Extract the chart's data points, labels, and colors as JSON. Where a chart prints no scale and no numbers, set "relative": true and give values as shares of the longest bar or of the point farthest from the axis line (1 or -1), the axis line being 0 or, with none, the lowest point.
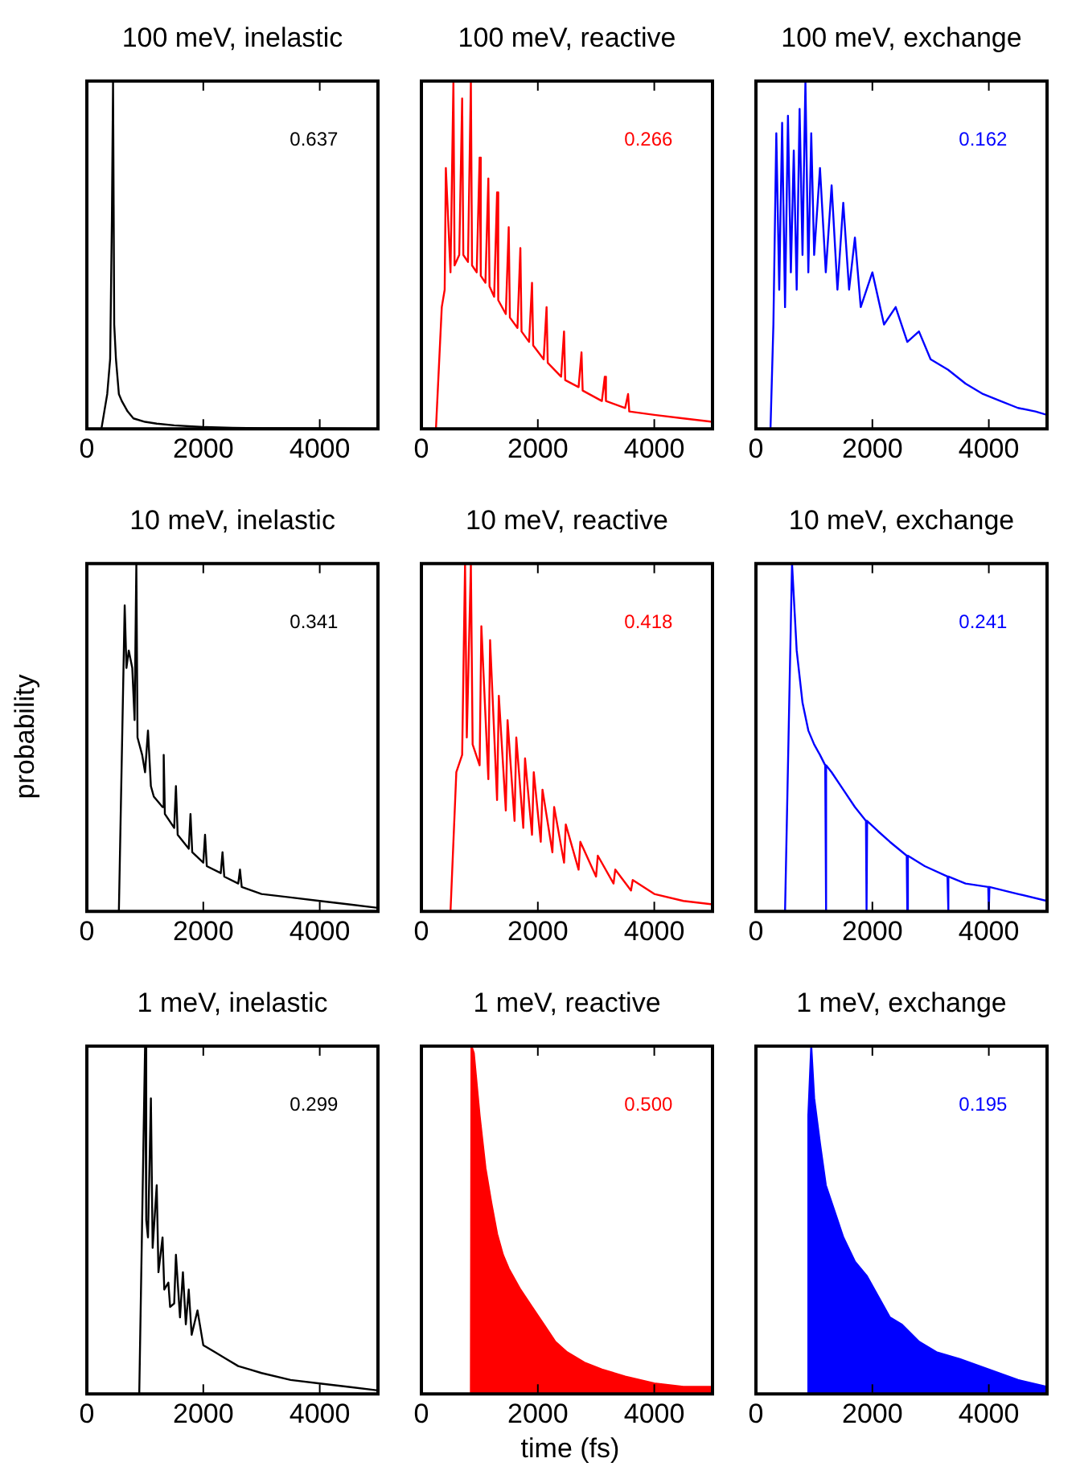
{
  "chart_data": [
    {
      "type": "line",
      "title": "100 meV, inelastic",
      "relative": true,
      "tick_labels": "x",
      "xlim": [
        0,
        5000
      ],
      "xticks": [
        0,
        2000,
        4000
      ],
      "annotations": [
        "0.637"
      ],
      "series": [
        {
          "color": "#000000",
          "x": [
            250,
            300,
            350,
            400,
            430,
            450,
            470,
            500,
            550,
            600,
            700,
            800,
            1000,
            1200,
            1500,
            2000,
            2500,
            3000,
            4000,
            5000
          ],
          "values": [
            0,
            0.05,
            0.1,
            0.2,
            0.6,
            1,
            0.3,
            0.2,
            0.1,
            0.08,
            0.05,
            0.03,
            0.02,
            0.015,
            0.01,
            0.005,
            0.003,
            0.002,
            0.001,
            0
          ]
        }
      ]
    },
    {
      "type": "line",
      "title": "100 meV, reactive",
      "relative": true,
      "tick_labels": "x",
      "xlim": [
        0,
        5000
      ],
      "xticks": [
        0,
        2000,
        4000
      ],
      "annotations": [
        "0.266"
      ],
      "series": [
        {
          "color": "#ff0000",
          "x": [
            250,
            350,
            400,
            420,
            500,
            550,
            570,
            650,
            700,
            720,
            800,
            850,
            870,
            950,
            1000,
            1020,
            1100,
            1150,
            1170,
            1250,
            1300,
            1320,
            1450,
            1500,
            1520,
            1650,
            1700,
            1720,
            1850,
            1900,
            1920,
            2100,
            2150,
            2170,
            2400,
            2450,
            2470,
            2700,
            2750,
            2770,
            3100,
            3150,
            3170,
            3500,
            3550,
            3570,
            4000,
            4500,
            5000
          ],
          "values": [
            0,
            0.35,
            0.4,
            0.75,
            0.45,
            1,
            0.47,
            0.5,
            0.95,
            0.5,
            0.48,
            1,
            0.47,
            0.45,
            0.78,
            0.44,
            0.42,
            0.72,
            0.41,
            0.38,
            0.68,
            0.37,
            0.33,
            0.58,
            0.32,
            0.29,
            0.52,
            0.28,
            0.25,
            0.42,
            0.24,
            0.2,
            0.35,
            0.19,
            0.15,
            0.28,
            0.14,
            0.12,
            0.22,
            0.11,
            0.08,
            0.15,
            0.08,
            0.06,
            0.1,
            0.05,
            0.04,
            0.03,
            0.02
          ]
        }
      ]
    },
    {
      "type": "line",
      "title": "100 meV, exchange",
      "relative": true,
      "tick_labels": "x",
      "xlim": [
        0,
        5000
      ],
      "xticks": [
        0,
        2000,
        4000
      ],
      "annotations": [
        "0.162"
      ],
      "series": [
        {
          "color": "#0000ff",
          "x": [
            250,
            300,
            350,
            400,
            450,
            500,
            550,
            600,
            650,
            700,
            750,
            800,
            850,
            900,
            950,
            1000,
            1100,
            1200,
            1300,
            1400,
            1500,
            1600,
            1700,
            1800,
            2000,
            2200,
            2400,
            2600,
            2800,
            3000,
            3300,
            3600,
            3900,
            4200,
            4500,
            4800,
            5000
          ],
          "values": [
            0,
            0.3,
            0.85,
            0.4,
            0.88,
            0.35,
            0.9,
            0.45,
            0.8,
            0.4,
            0.92,
            0.5,
            1,
            0.45,
            0.85,
            0.5,
            0.75,
            0.45,
            0.7,
            0.4,
            0.65,
            0.4,
            0.55,
            0.35,
            0.45,
            0.3,
            0.35,
            0.25,
            0.28,
            0.2,
            0.17,
            0.13,
            0.1,
            0.08,
            0.06,
            0.05,
            0.04
          ]
        }
      ]
    },
    {
      "type": "line",
      "title": "10 meV, inelastic",
      "ylabel": "probability",
      "relative": true,
      "tick_labels": "x",
      "xlim": [
        0,
        5000
      ],
      "xticks": [
        0,
        2000,
        4000
      ],
      "annotations": [
        "0.341"
      ],
      "series": [
        {
          "color": "#000000",
          "x": [
            550,
            650,
            680,
            720,
            780,
            820,
            850,
            870,
            950,
            1000,
            1050,
            1100,
            1150,
            1300,
            1320,
            1340,
            1500,
            1530,
            1560,
            1750,
            1780,
            1810,
            2000,
            2030,
            2060,
            2300,
            2330,
            2360,
            2600,
            2630,
            2660,
            3000,
            3500,
            4000,
            4500,
            5000
          ],
          "values": [
            0,
            0.88,
            0.7,
            0.75,
            0.7,
            0.55,
            1,
            0.5,
            0.45,
            0.4,
            0.52,
            0.36,
            0.33,
            0.3,
            0.45,
            0.28,
            0.24,
            0.36,
            0.22,
            0.18,
            0.28,
            0.17,
            0.14,
            0.22,
            0.13,
            0.11,
            0.17,
            0.1,
            0.08,
            0.12,
            0.07,
            0.05,
            0.04,
            0.03,
            0.02,
            0.01
          ]
        }
      ]
    },
    {
      "type": "line",
      "title": "10 meV, reactive",
      "relative": true,
      "tick_labels": "x",
      "xlim": [
        0,
        5000
      ],
      "xticks": [
        0,
        2000,
        4000
      ],
      "annotations": [
        "0.418"
      ],
      "series": [
        {
          "color": "#ff0000",
          "x": [
            500,
            600,
            700,
            750,
            780,
            850,
            880,
            1000,
            1030,
            1150,
            1180,
            1300,
            1330,
            1450,
            1480,
            1600,
            1630,
            1750,
            1780,
            1900,
            1930,
            2050,
            2080,
            2250,
            2280,
            2450,
            2480,
            2700,
            2730,
            3000,
            3030,
            3300,
            3330,
            3600,
            3630,
            4000,
            4500,
            5000
          ],
          "values": [
            0,
            0.4,
            0.45,
            1,
            0.5,
            1,
            0.48,
            0.42,
            0.82,
            0.38,
            0.78,
            0.32,
            0.62,
            0.29,
            0.55,
            0.26,
            0.5,
            0.24,
            0.44,
            0.22,
            0.4,
            0.2,
            0.35,
            0.17,
            0.3,
            0.14,
            0.25,
            0.12,
            0.2,
            0.1,
            0.16,
            0.08,
            0.12,
            0.06,
            0.09,
            0.05,
            0.03,
            0.02
          ]
        }
      ]
    },
    {
      "type": "line",
      "title": "10 meV, exchange",
      "relative": true,
      "tick_labels": "x",
      "xlim": [
        0,
        5000
      ],
      "xticks": [
        0,
        2000,
        4000
      ],
      "annotations": [
        "0.241"
      ],
      "series": [
        {
          "color": "#0000ff",
          "x": [
            500,
            560,
            620,
            700,
            800,
            900,
            1000,
            1100,
            1190,
            1200,
            1210,
            1300,
            1500,
            1700,
            1890,
            1900,
            1910,
            2100,
            2300,
            2590,
            2600,
            2610,
            2900,
            3290,
            3300,
            3310,
            3600,
            3990,
            4000,
            4010,
            4500,
            5000
          ],
          "values": [
            0,
            0.5,
            1,
            0.75,
            0.6,
            0.52,
            0.48,
            0.45,
            0.42,
            0,
            0.42,
            0.4,
            0.35,
            0.3,
            0.26,
            0,
            0.26,
            0.23,
            0.2,
            0.16,
            0,
            0.16,
            0.13,
            0.1,
            0,
            0.1,
            0.08,
            0.07,
            0,
            0.07,
            0.05,
            0.03
          ]
        }
      ]
    },
    {
      "type": "line",
      "title": "1 meV, inelastic",
      "relative": true,
      "tick_labels": "x",
      "xlim": [
        0,
        5000
      ],
      "xticks": [
        0,
        2000,
        4000
      ],
      "annotations": [
        "0.299"
      ],
      "series": [
        {
          "color": "#000000",
          "x": [
            900,
            1000,
            1020,
            1050,
            1100,
            1130,
            1200,
            1230,
            1300,
            1330,
            1400,
            1430,
            1500,
            1530,
            1600,
            1650,
            1700,
            1750,
            1800,
            1900,
            2000,
            2200,
            2400,
            2600,
            2800,
            3000,
            3500,
            4000,
            4500,
            5000
          ],
          "values": [
            0,
            1,
            0.5,
            0.45,
            0.85,
            0.42,
            0.6,
            0.35,
            0.45,
            0.3,
            0.32,
            0.25,
            0.26,
            0.4,
            0.22,
            0.35,
            0.2,
            0.3,
            0.17,
            0.24,
            0.14,
            0.12,
            0.1,
            0.08,
            0.07,
            0.06,
            0.04,
            0.03,
            0.02,
            0.01
          ]
        }
      ]
    },
    {
      "type": "area",
      "title": "1 meV, reactive",
      "xlabel": "time (fs)",
      "relative": true,
      "tick_labels": "x",
      "xlim": [
        0,
        5000
      ],
      "xticks": [
        0,
        2000,
        4000
      ],
      "annotations": [
        "0.500"
      ],
      "series": [
        {
          "color": "#ff0000",
          "x": [
            850,
            860,
            900,
            1000,
            1100,
            1200,
            1300,
            1400,
            1500,
            1700,
            1900,
            2100,
            2300,
            2500,
            2800,
            3100,
            3500,
            4000,
            4500,
            5000
          ],
          "values": [
            0,
            1,
            0.98,
            0.8,
            0.65,
            0.55,
            0.46,
            0.4,
            0.36,
            0.3,
            0.25,
            0.2,
            0.15,
            0.12,
            0.09,
            0.07,
            0.05,
            0.03,
            0.02,
            0.02
          ]
        }
      ]
    },
    {
      "type": "area",
      "title": "1 meV, exchange",
      "relative": true,
      "tick_labels": "x",
      "xlim": [
        0,
        5000
      ],
      "xticks": [
        0,
        2000,
        4000
      ],
      "annotations": [
        "0.195"
      ],
      "series": [
        {
          "color": "#0000ff",
          "x": [
            890,
            900,
            950,
            1000,
            1100,
            1200,
            1300,
            1400,
            1500,
            1700,
            1900,
            2100,
            2300,
            2500,
            2800,
            3100,
            3500,
            4000,
            4500,
            5000
          ],
          "values": [
            0,
            0.8,
            1,
            0.85,
            0.72,
            0.6,
            0.55,
            0.5,
            0.45,
            0.38,
            0.34,
            0.28,
            0.22,
            0.2,
            0.15,
            0.12,
            0.1,
            0.07,
            0.04,
            0.02
          ]
        }
      ]
    }
  ]
}
